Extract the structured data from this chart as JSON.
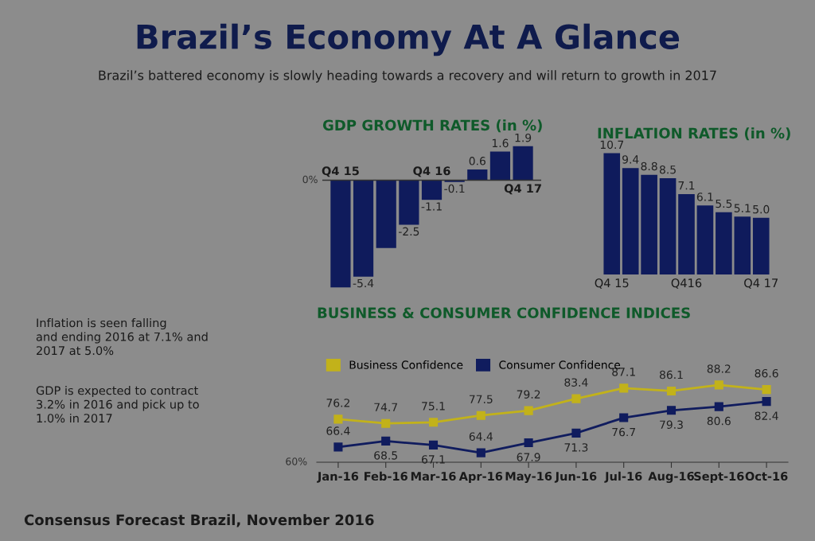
{
  "chart_data": [
    {
      "type": "other",
      "title": "Brazil’s Economy At A Glance",
      "subtitle": "Brazil’s battered economy is slowly heading towards a recovery and will return to growth in 2017",
      "annotations": [
        "Inflation is seen falling and ending 2016 at 7.1% and 2017 at 5.0%",
        "GDP is expected to contract 3.2% in 2016 and pick up to 1.0% in 2017",
        "Consensus Forecast Brazil, November 2016"
      ]
    },
    {
      "type": "bar",
      "title": "GDP GROWTH RATES (in %)",
      "categories": [
        "Q4 15",
        null,
        null,
        null,
        "Q4 16",
        null,
        null,
        null,
        "Q4 17"
      ],
      "values": [
        -6.0,
        -5.4,
        -3.8,
        -2.5,
        -1.1,
        -0.1,
        0.6,
        1.6,
        1.9
      ],
      "color": "#0f1b5c",
      "value_labels": [
        null,
        "-5.4",
        null,
        "-2.5",
        "-1.1",
        "-0.1",
        "0.6",
        "1.6",
        "1.9"
      ],
      "annotations": [
        "0%"
      ],
      "grid": false
    },
    {
      "type": "bar",
      "title": "INFLATION RATES (in %)",
      "categories": [
        "Q4 15",
        null,
        null,
        null,
        "Q416",
        null,
        null,
        null,
        "Q4 17"
      ],
      "values": [
        10.7,
        9.4,
        8.8,
        8.5,
        7.1,
        6.1,
        5.5,
        5.1,
        5.0
      ],
      "color": "#0f1b5c",
      "value_labels": [
        "10.7",
        "9.4",
        "8.8",
        "8.5",
        "7.1",
        "6.1",
        "5.5",
        "5.1",
        "5.0"
      ],
      "tick_labels": "x",
      "grid": false
    },
    {
      "type": "line",
      "title": "BUSINESS & CONSUMER CONFIDENCE INDICES",
      "categories": [
        "Jan-16",
        "Feb-16",
        "Mar-16",
        "Apr-16",
        "May-16",
        "Jun-16",
        "Jul-16",
        "Aug-16",
        "Sept-16",
        "Oct-16"
      ],
      "series": [
        {
          "name": "Business Confidence",
          "color": "#c2b21a",
          "values": [
            76.2,
            74.7,
            75.1,
            77.5,
            79.2,
            83.4,
            87.1,
            86.1,
            88.2,
            86.6
          ]
        },
        {
          "name": "Consumer Confidence",
          "color": "#101c5e",
          "values": [
            66.4,
            68.5,
            67.1,
            64.4,
            67.9,
            71.3,
            76.7,
            79.3,
            80.6,
            82.4
          ]
        }
      ],
      "annotations": [
        "60%"
      ],
      "data_labels": true,
      "marker": "square",
      "line_style": "solid",
      "legend": "top left",
      "grid": false
    }
  ]
}
